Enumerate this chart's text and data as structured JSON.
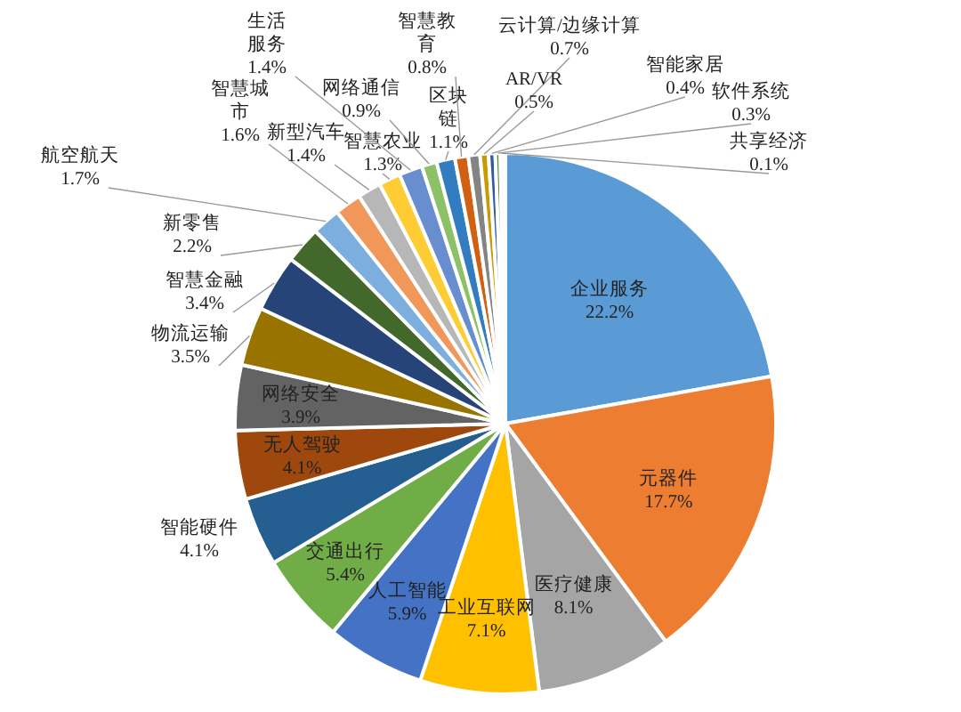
{
  "chart_data": {
    "type": "pie",
    "value_labels": [
      "22.2%",
      "17.7%",
      "8.1%",
      "7.1%",
      "5.9%",
      "5.4%",
      "4.1%",
      "4.1%",
      "3.9%",
      "3.5%",
      "3.4%",
      "2.2%",
      "1.7%",
      "1.6%",
      "1.4%",
      "1.3%",
      "1.4%",
      "0.9%",
      "1.1%",
      "0.8%",
      "0.7%",
      "0.5%",
      "0.4%",
      "0.3%",
      "0.1%"
    ],
    "categories": [
      "企业服务",
      "元器件",
      "医疗健康",
      "工业互联网",
      "人工智能",
      "交通出行",
      "智能硬件",
      "无人驾驶",
      "网络安全",
      "物流运输",
      "智慧金融",
      "新零售",
      "航空航天",
      "智慧城市",
      "新型汽车",
      "智慧农业",
      "生活服务",
      "网络通信",
      "区块链",
      "智慧教育",
      "云计算/边缘计算",
      "AR/VR",
      "智能家居",
      "软件系统",
      "共享经济"
    ],
    "values": [
      22.2,
      17.7,
      8.1,
      7.1,
      5.9,
      5.4,
      4.1,
      4.1,
      3.9,
      3.5,
      3.4,
      2.2,
      1.7,
      1.6,
      1.4,
      1.3,
      1.4,
      0.9,
      1.1,
      0.8,
      0.7,
      0.5,
      0.4,
      0.3,
      0.1
    ],
    "colors": [
      "#5b9bd5",
      "#ed7d31",
      "#a5a5a5",
      "#ffc000",
      "#4472c4",
      "#70ad47",
      "#255e91",
      "#9e480e",
      "#636363",
      "#997300",
      "#264478",
      "#43682b",
      "#7cafdd",
      "#f1975a",
      "#b7b7b7",
      "#ffcd33",
      "#698ed0",
      "#8cc168",
      "#327dc2",
      "#d26012",
      "#848484",
      "#cc9a00",
      "#335aa1",
      "#5a8a39",
      "#a3c3e9"
    ]
  }
}
